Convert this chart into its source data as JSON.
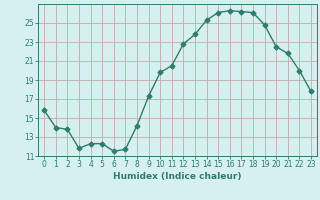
{
  "x": [
    0,
    1,
    2,
    3,
    4,
    5,
    6,
    7,
    8,
    9,
    10,
    11,
    12,
    13,
    14,
    15,
    16,
    17,
    18,
    19,
    20,
    21,
    22,
    23
  ],
  "y": [
    15.8,
    14.0,
    13.8,
    11.8,
    12.3,
    12.3,
    11.5,
    11.7,
    14.2,
    17.3,
    19.8,
    20.5,
    22.8,
    23.8,
    25.3,
    26.1,
    26.3,
    26.2,
    26.1,
    24.8,
    22.5,
    21.8,
    20.0,
    17.8
  ],
  "line_color": "#2e7d6e",
  "marker": "D",
  "marker_size": 2.5,
  "bg_color": "#d6f0ef",
  "grid_color": "#c8a8a8",
  "xlabel": "Humidex (Indice chaleur)",
  "xlim": [
    -0.5,
    23.5
  ],
  "ylim": [
    11,
    27
  ],
  "yticks": [
    11,
    13,
    15,
    17,
    19,
    21,
    23,
    25
  ],
  "xticks": [
    0,
    1,
    2,
    3,
    4,
    5,
    6,
    7,
    8,
    9,
    10,
    11,
    12,
    13,
    14,
    15,
    16,
    17,
    18,
    19,
    20,
    21,
    22,
    23
  ],
  "tick_fontsize": 5.5,
  "label_fontsize": 6.5
}
